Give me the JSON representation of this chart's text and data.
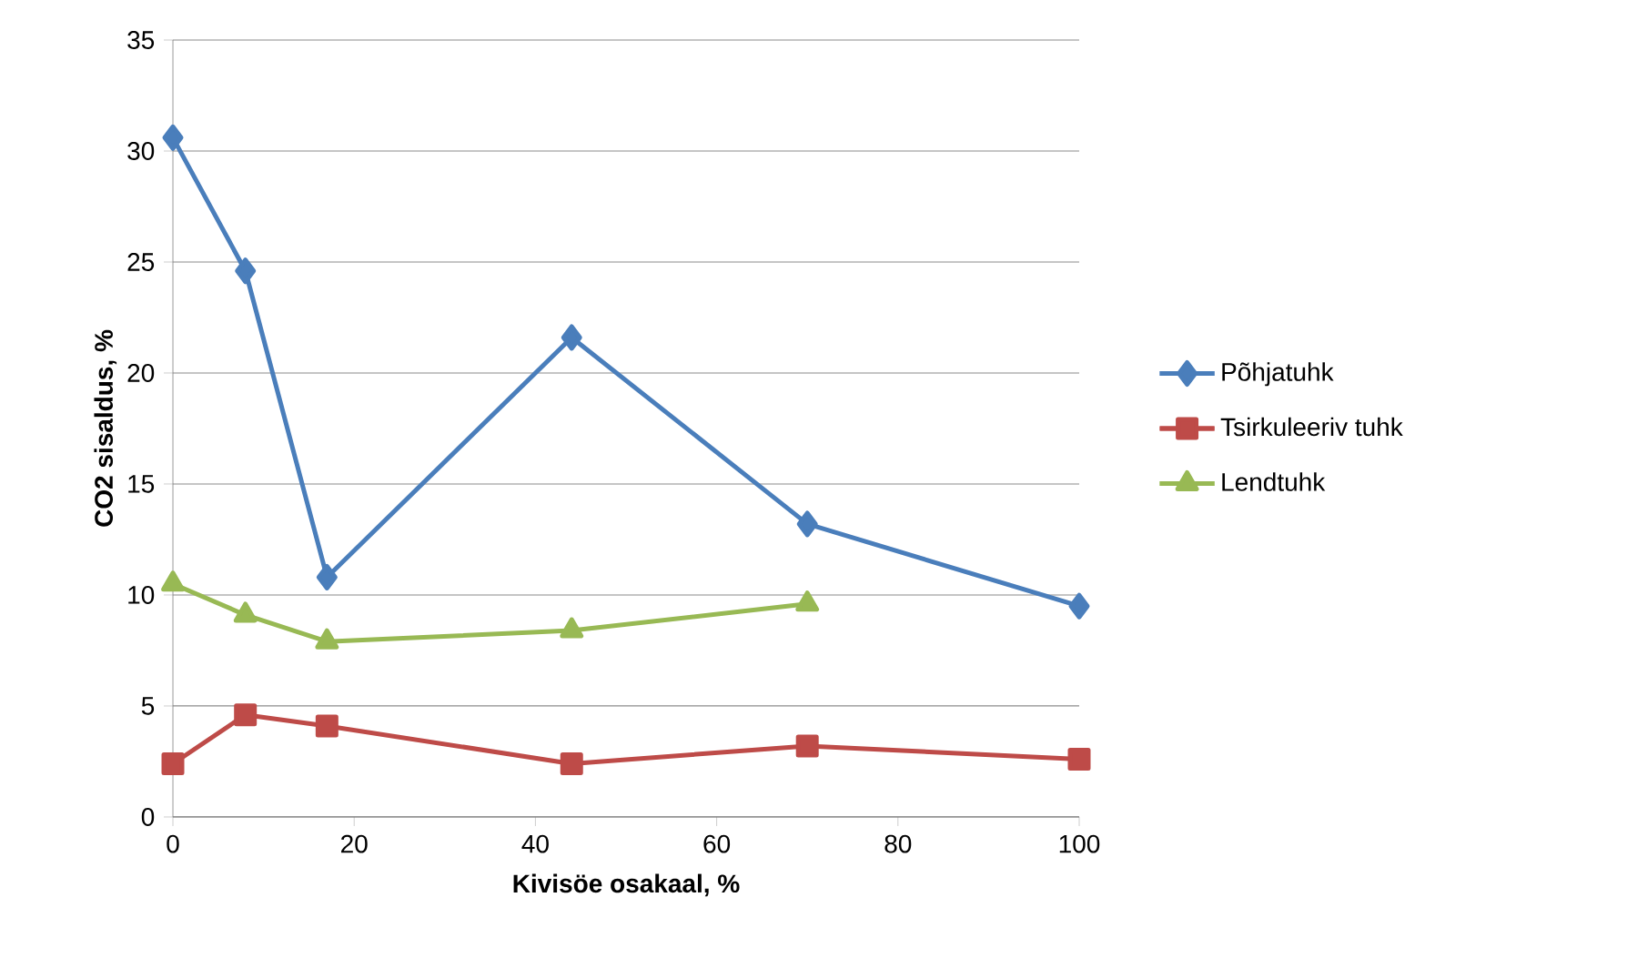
{
  "chart_data": {
    "type": "line",
    "xlabel": "Kivisöe osakaal, %",
    "ylabel": "CO2 sisaldus, %",
    "xlim": [
      0,
      100
    ],
    "xticks": [
      0,
      20,
      40,
      60,
      80,
      100
    ],
    "ylim": [
      0,
      35
    ],
    "yticks": [
      0,
      5,
      10,
      15,
      20,
      25,
      30,
      35
    ],
    "grid": "y",
    "legend": "right",
    "line_style": "solid",
    "series": [
      {
        "name": "Põhjatuhk",
        "color": "#4a7ebb",
        "marker": "diamond",
        "x": [
          0,
          8,
          17,
          44,
          70,
          100
        ],
        "values": [
          30.6,
          24.6,
          10.8,
          21.6,
          13.2,
          9.5
        ]
      },
      {
        "name": "Tsirkuleeriv tuhk",
        "color": "#be4b48",
        "marker": "square",
        "x": [
          0,
          8,
          17,
          44,
          70,
          100
        ],
        "values": [
          2.4,
          4.6,
          4.1,
          2.4,
          3.2,
          2.6
        ]
      },
      {
        "name": "Lendtuhk",
        "color": "#98b954",
        "marker": "triangle",
        "x": [
          0,
          8,
          17,
          44,
          70
        ],
        "values": [
          10.5,
          9.1,
          7.9,
          8.4,
          9.6
        ]
      }
    ]
  }
}
